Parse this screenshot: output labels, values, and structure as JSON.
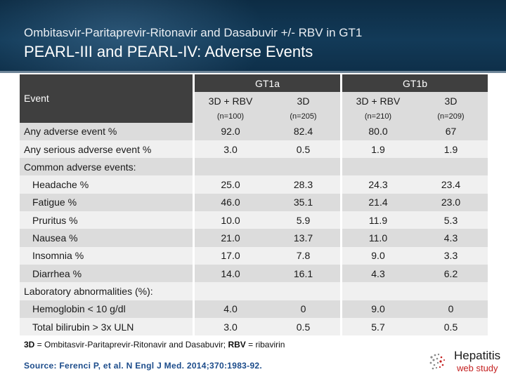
{
  "header": {
    "subtitle": "Ombitasvir-Paritaprevir-Ritonavir and Dasabuvir +/- RBV in GT1",
    "title": "PEARL-III and PEARL-IV: Adverse Events"
  },
  "table": {
    "event_label": "Event",
    "groups": [
      "GT1a",
      "GT1b"
    ],
    "regimens": [
      "3D + RBV",
      "3D",
      "3D + RBV",
      "3D"
    ],
    "ns": [
      "(n=100)",
      "(n=205)",
      "(n=210)",
      "(n=209)"
    ],
    "rows": [
      {
        "label": "Any adverse event  %",
        "values": [
          "92.0",
          "82.4",
          "80.0",
          "67"
        ]
      },
      {
        "label": "Any serious adverse event %",
        "values": [
          "3.0",
          "0.5",
          "1.9",
          "1.9"
        ]
      },
      {
        "label": "Common adverse events:",
        "values": [
          "",
          "",
          "",
          ""
        ]
      },
      {
        "label": "Headache %",
        "values": [
          "25.0",
          "28.3",
          "24.3",
          "23.4"
        ]
      },
      {
        "label": "Fatigue %",
        "values": [
          "46.0",
          "35.1",
          "21.4",
          "23.0"
        ]
      },
      {
        "label": "Pruritus %",
        "values": [
          "10.0",
          "5.9",
          "11.9",
          "5.3"
        ]
      },
      {
        "label": "Nausea %",
        "values": [
          "21.0",
          "13.7",
          "11.0",
          "4.3"
        ]
      },
      {
        "label": "Insomnia %",
        "values": [
          "17.0",
          "7.8",
          "9.0",
          "3.3"
        ]
      },
      {
        "label": "Diarrhea %",
        "values": [
          "14.0",
          "16.1",
          "4.3",
          "6.2"
        ]
      },
      {
        "label": "Laboratory abnormalities (%):",
        "values": [
          "",
          "",
          "",
          ""
        ]
      },
      {
        "label": "Hemoglobin < 10 g/dl",
        "values": [
          "4.0",
          "0",
          "9.0",
          "0"
        ]
      },
      {
        "label": "Total bilirubin > 3x ULN",
        "values": [
          "3.0",
          "0.5",
          "5.7",
          "0.5"
        ]
      }
    ]
  },
  "footnote": {
    "abbr1": "3D",
    "def1": " = Ombitasvir-Paritaprevir-Ritonavir and Dasabuvir; ",
    "abbr2": "RBV",
    "def2": " = ribavirin"
  },
  "source": "Source: Ferenci P, et al. N Engl J Med. 2014;370:1983-92.",
  "logo": {
    "line1": "Hepatitis",
    "line2": "web study",
    "icon": "hepatitis-logo-icon",
    "colors": {
      "accent": "#c42020",
      "dark": "#1a1a1a"
    }
  }
}
